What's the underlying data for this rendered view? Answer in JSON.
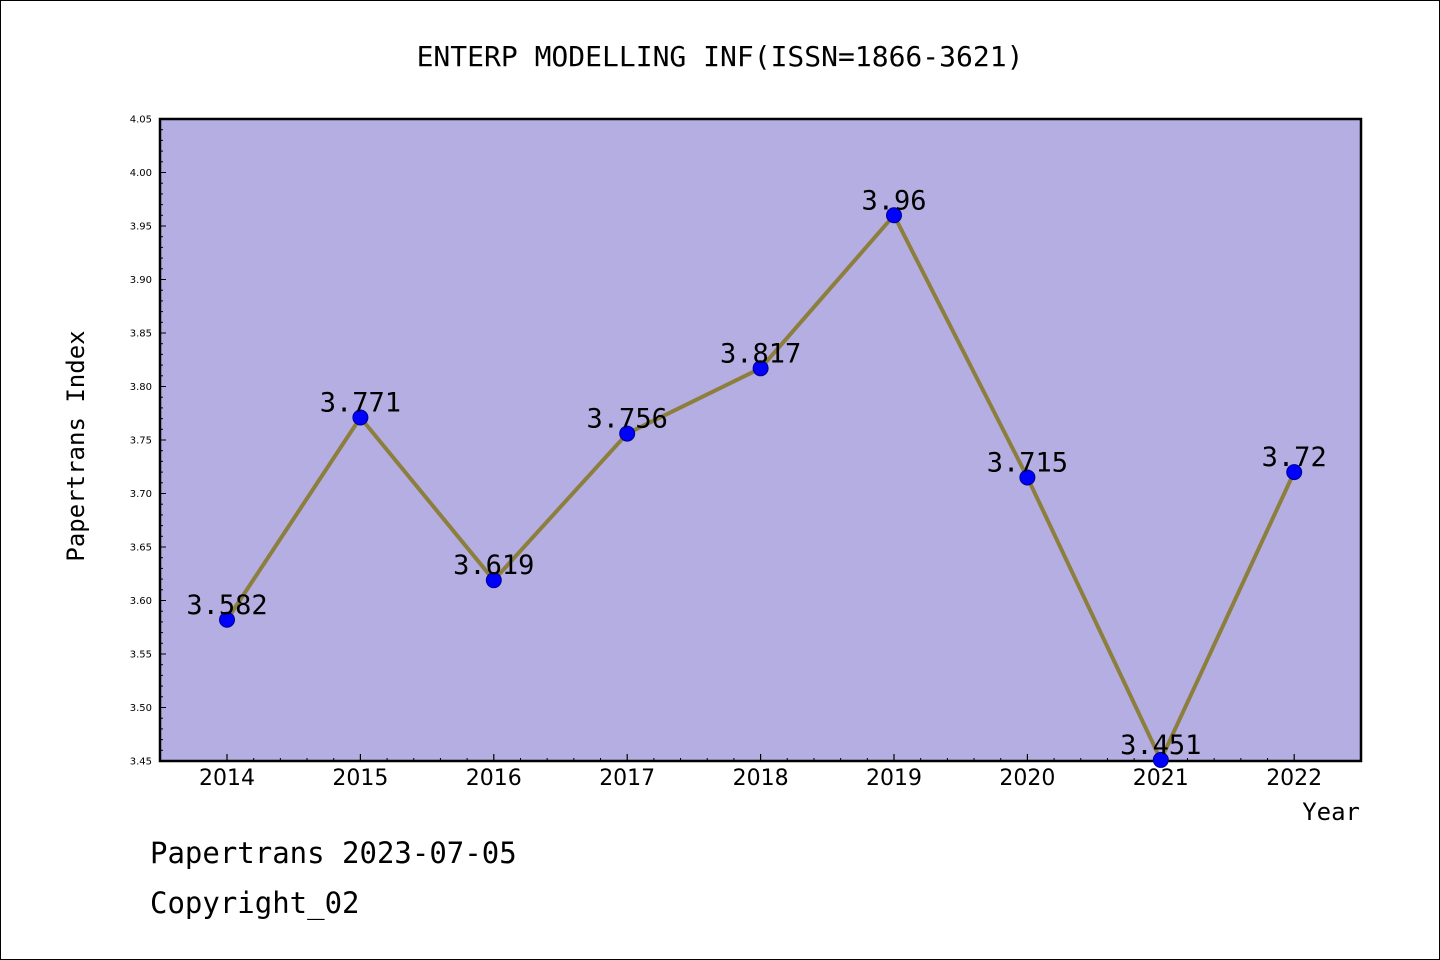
{
  "chart_data": {
    "type": "line",
    "title": "ENTERP MODELLING INF(ISSN=1866-3621)",
    "xlabel": "Year",
    "ylabel": "Papertrans Index",
    "x": [
      "2014",
      "2015",
      "2016",
      "2017",
      "2018",
      "2019",
      "2020",
      "2021",
      "2022"
    ],
    "series": [
      {
        "values": [
          3.582,
          3.771,
          3.619,
          3.756,
          3.817,
          3.96,
          3.715,
          3.451,
          3.72
        ],
        "labels": [
          "3.582",
          "3.771",
          "3.619",
          "3.756",
          "3.817",
          "3.96",
          "3.715",
          "3.451",
          "3.72"
        ]
      }
    ],
    "ylim": [
      3.45,
      4.05
    ],
    "yticks": [
      "3.45",
      "3.50",
      "3.55",
      "3.60",
      "3.65",
      "3.70",
      "3.75",
      "3.80",
      "3.85",
      "3.90",
      "3.95",
      "4.00",
      "4.05"
    ],
    "grid": false,
    "colors": {
      "plot_background": "#b5aee2",
      "line": "#8c7f3d",
      "marker": "#0000ff",
      "marker_edge": "#00008b"
    }
  },
  "footer": {
    "date_line": "Papertrans 2023-07-05",
    "copyright_line": "Copyright_02"
  }
}
